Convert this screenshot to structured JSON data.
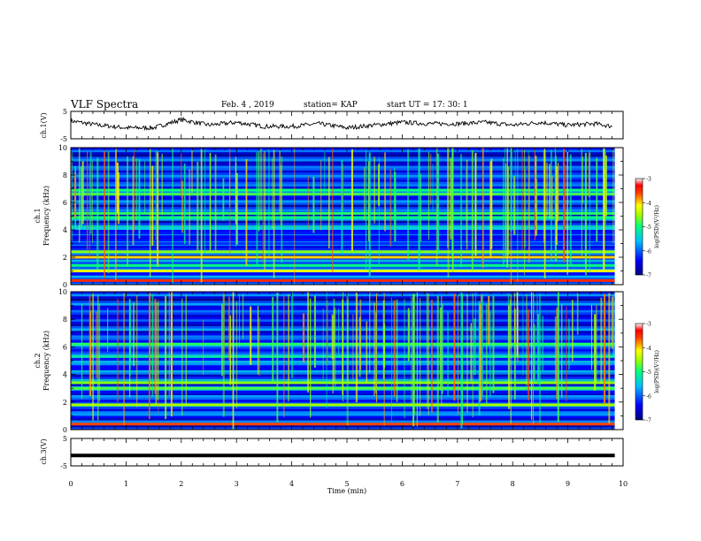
{
  "header": {
    "title": "VLF Spectra",
    "date": "Feb. 4 , 2019",
    "station": "station= KAP",
    "start": "start UT =  17: 30: 1"
  },
  "colors": {
    "background": "#ffffff",
    "trace": "#000000",
    "colormap": [
      "#00007f",
      "#0000ff",
      "#0090ff",
      "#00ffff",
      "#40ff80",
      "#00ff00",
      "#ffff00",
      "#ff8000",
      "#ff0000",
      "#ffffff"
    ]
  },
  "chart_data": [
    {
      "type": "line",
      "panel": "ch1-voltage",
      "ylabel": "ch.1(V)",
      "ylim": [
        -5,
        5
      ],
      "yticks": [
        "5",
        "-5"
      ],
      "xlim": [
        0,
        10
      ],
      "x": [
        0.0,
        0.5,
        1.0,
        1.5,
        2.0,
        2.5,
        3.0,
        3.5,
        4.0,
        4.5,
        5.0,
        5.5,
        6.0,
        6.5,
        7.0,
        7.5,
        8.0,
        8.5,
        9.0,
        9.5,
        9.8
      ],
      "y": [
        1.5,
        0.0,
        -1.0,
        -1.0,
        2.0,
        0.0,
        1.0,
        -0.5,
        -0.5,
        0.5,
        -1.0,
        0.0,
        1.0,
        0.5,
        0.5,
        1.0,
        0.0,
        1.0,
        0.0,
        0.5,
        -0.5
      ]
    },
    {
      "type": "heatmap",
      "panel": "ch1-spectrogram",
      "ylabel": "ch.1\nFrequency (kHz)",
      "yticks": [
        "0",
        "2",
        "4",
        "6",
        "8",
        "10"
      ],
      "ylim": [
        0,
        10
      ],
      "xlim": [
        0,
        9.85
      ],
      "colorbar": {
        "label": "log(PSD)(V²/Hz)",
        "range": [
          -7,
          -3
        ],
        "ticks": [
          "-3",
          "-4",
          "-5",
          "-6",
          "-7"
        ]
      },
      "bands": [
        {
          "kHz": 0.3,
          "level": -3.5
        },
        {
          "kHz": 1.0,
          "level": -4.2
        },
        {
          "kHz": 1.4,
          "level": -5.0
        },
        {
          "kHz": 2.0,
          "level": -4.0
        },
        {
          "kHz": 2.4,
          "level": -4.6
        },
        {
          "kHz": 3.0,
          "level": -6.2
        },
        {
          "kHz": 3.5,
          "level": -6.4
        },
        {
          "kHz": 4.1,
          "level": -5.5
        },
        {
          "kHz": 4.9,
          "level": -5.0
        },
        {
          "kHz": 5.2,
          "level": -4.9
        },
        {
          "kHz": 6.6,
          "level": -4.8
        },
        {
          "kHz": 6.9,
          "level": -5.0
        }
      ]
    },
    {
      "type": "heatmap",
      "panel": "ch2-spectrogram",
      "ylabel": "ch.2\nFrequency (kHz)",
      "yticks": [
        "0",
        "2",
        "4",
        "6",
        "8",
        "10"
      ],
      "ylim": [
        0,
        10
      ],
      "xlim": [
        0,
        9.85
      ],
      "colorbar": {
        "label": "log(PSD)(V²/Hz)",
        "range": [
          -7,
          -3
        ],
        "ticks": [
          "-3",
          "-4",
          "-5",
          "-6",
          "-7"
        ]
      },
      "bands": [
        {
          "kHz": 0.4,
          "level": -3.6
        },
        {
          "kHz": 1.8,
          "level": -4.5
        },
        {
          "kHz": 3.0,
          "level": -4.8
        },
        {
          "kHz": 3.4,
          "level": -4.6
        },
        {
          "kHz": 4.4,
          "level": -6.4
        },
        {
          "kHz": 5.3,
          "level": -5.2
        },
        {
          "kHz": 6.2,
          "level": -4.9
        }
      ]
    },
    {
      "type": "line",
      "panel": "ch3-voltage",
      "ylabel": "ch.3(V)",
      "ylim": [
        -5,
        5
      ],
      "yticks": [
        "5",
        "-5"
      ],
      "xlabel": "Time (min)",
      "xlim": [
        0,
        10
      ],
      "xticks": [
        "0",
        "1",
        "2",
        "3",
        "4",
        "5",
        "6",
        "7",
        "8",
        "9",
        "10"
      ],
      "x": [
        0.0,
        9.85
      ],
      "y": [
        -1.2,
        -1.2
      ]
    }
  ]
}
